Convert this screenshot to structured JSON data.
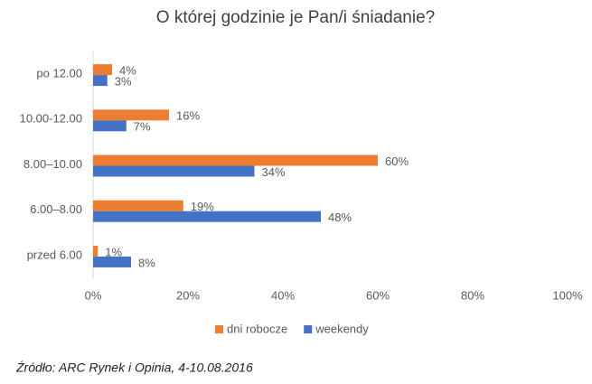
{
  "chart_data": {
    "type": "hbar",
    "title": "O której godzinie je Pan/i śniadanie?",
    "categories": [
      "po 12.00",
      "10.00-12.00",
      "8.00–10.00",
      "6.00–8.00",
      "przed 6.00"
    ],
    "series": [
      {
        "name": "dni robocze",
        "color": "#ED7D31",
        "values": [
          4,
          16,
          60,
          19,
          1
        ],
        "value_labels": [
          "4%",
          "16%",
          "60%",
          "19%",
          "1%"
        ]
      },
      {
        "name": "weekendy",
        "color": "#4472C4",
        "values": [
          3,
          7,
          34,
          48,
          8
        ],
        "value_labels": [
          "3%",
          "7%",
          "34%",
          "48%",
          "8%"
        ]
      }
    ],
    "xlim": [
      0,
      100
    ],
    "xticks": [
      {
        "value": 0,
        "label": "0%"
      },
      {
        "value": 20,
        "label": "20%"
      },
      {
        "value": 40,
        "label": "40%"
      },
      {
        "value": 60,
        "label": "60%"
      },
      {
        "value": 80,
        "label": "80%"
      },
      {
        "value": 100,
        "label": "100%"
      }
    ],
    "legend": "bottom",
    "source": "Źródło: ARC Rynek i Opinia, 4-10.08.2016"
  }
}
